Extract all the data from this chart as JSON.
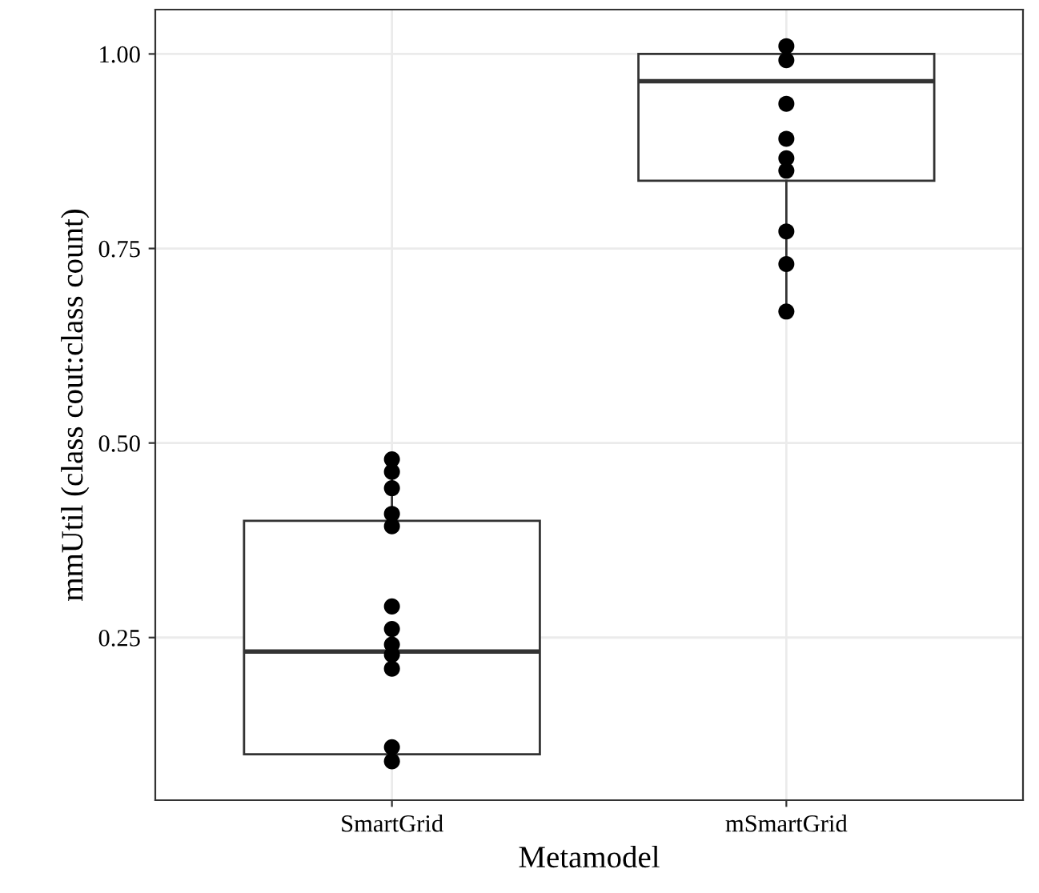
{
  "chart_data": {
    "type": "box",
    "xlabel": "Metamodel",
    "ylabel": "mmUtil (class cout:class count)",
    "categories": [
      "SmartGrid",
      "mSmartGrid"
    ],
    "boxes": [
      {
        "low": 0.088,
        "q1": 0.1,
        "median": 0.232,
        "q3": 0.4,
        "high": 0.477
      },
      {
        "low": 0.664,
        "q1": 0.837,
        "median": 0.965,
        "q3": 1.0,
        "high": 1.01
      }
    ],
    "color": "#333333",
    "ylim": [
      0.041,
      1.057
    ],
    "yticks": [
      {
        "value": 0.25,
        "label": "0.25"
      },
      {
        "value": 0.5,
        "label": "0.50"
      },
      {
        "value": 0.75,
        "label": "0.75"
      },
      {
        "value": 1.0,
        "label": "1.00"
      }
    ],
    "grid": true,
    "series": [
      {
        "type": "scatter",
        "color": "#000000",
        "marker": "circle",
        "x": [
          "SmartGrid",
          "SmartGrid",
          "SmartGrid",
          "SmartGrid",
          "SmartGrid",
          "SmartGrid",
          "SmartGrid",
          "SmartGrid",
          "SmartGrid",
          "SmartGrid",
          "SmartGrid",
          "SmartGrid",
          "mSmartGrid",
          "mSmartGrid",
          "mSmartGrid",
          "mSmartGrid",
          "mSmartGrid",
          "mSmartGrid",
          "mSmartGrid",
          "mSmartGrid",
          "mSmartGrid"
        ],
        "values": [
          0.479,
          0.463,
          0.442,
          0.409,
          0.393,
          0.29,
          0.261,
          0.241,
          0.228,
          0.21,
          0.109,
          0.091,
          1.01,
          0.992,
          0.936,
          0.891,
          0.866,
          0.85,
          0.772,
          0.73,
          0.669
        ]
      }
    ]
  }
}
